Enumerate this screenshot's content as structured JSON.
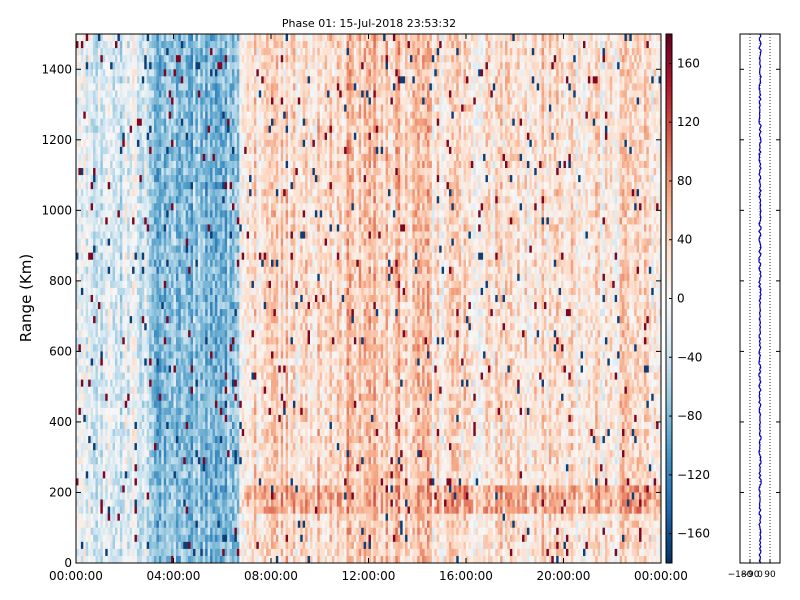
{
  "chart_data": [
    {
      "type": "heatmap",
      "title": "Phase 01: 15-Jul-2018 23:53:32",
      "xlabel": "",
      "ylabel": "Range (Km)",
      "x_ticks": [
        "00:00:00",
        "04:00:00",
        "08:00:00",
        "12:00:00",
        "16:00:00",
        "20:00:00",
        "00:00:00"
      ],
      "x_range_hours": [
        0,
        24
      ],
      "y_ticks": [
        0,
        200,
        400,
        600,
        800,
        1000,
        1200,
        1400
      ],
      "ylim": [
        0,
        1500
      ],
      "colormap": "RdBu_r",
      "grid": false,
      "colorbar": {
        "ticks": [
          -160,
          -120,
          -80,
          -40,
          0,
          40,
          80,
          120,
          160
        ],
        "tick_labels": [
          "−160",
          "−120",
          "−80",
          "−40",
          "0",
          "40",
          "80",
          "120",
          "160"
        ],
        "range": [
          -180,
          180
        ]
      },
      "regions": [
        {
          "x_hours": [
            0,
            3
          ],
          "y_km": [
            0,
            1500
          ],
          "phase_mean": -20,
          "description": "light blue / white mix"
        },
        {
          "x_hours": [
            3,
            6.7
          ],
          "y_km": [
            0,
            1500
          ],
          "phase_mean": -75,
          "description": "strong blue band"
        },
        {
          "x_hours": [
            6.7,
            11
          ],
          "y_km": [
            0,
            1500
          ],
          "phase_mean": 30,
          "description": "light red"
        },
        {
          "x_hours": [
            11,
            14.5
          ],
          "y_km": [
            0,
            1500
          ],
          "phase_mean": 50,
          "description": "red with dark red streaks"
        },
        {
          "x_hours": [
            14.5,
            24
          ],
          "y_km": [
            0,
            1500
          ],
          "phase_mean": 20,
          "description": "light red / white mix"
        },
        {
          "x_hours": [
            6.7,
            24
          ],
          "y_km": [
            150,
            220
          ],
          "phase_mean": 60,
          "description": "faint red horizontal band"
        }
      ]
    },
    {
      "type": "line",
      "orientation": "vertical",
      "series_color": "#0000cc",
      "x_ticks": [
        -180,
        -90,
        0,
        90
      ],
      "x_tick_labels": [
        "−180",
        "−90",
        "0",
        "90"
      ],
      "xlim": [
        -180,
        180
      ],
      "ylim": [
        0,
        1500
      ],
      "reference_lines": [
        -90,
        0,
        90
      ],
      "profile_mean": 0,
      "profile_jitter": 10
    }
  ]
}
